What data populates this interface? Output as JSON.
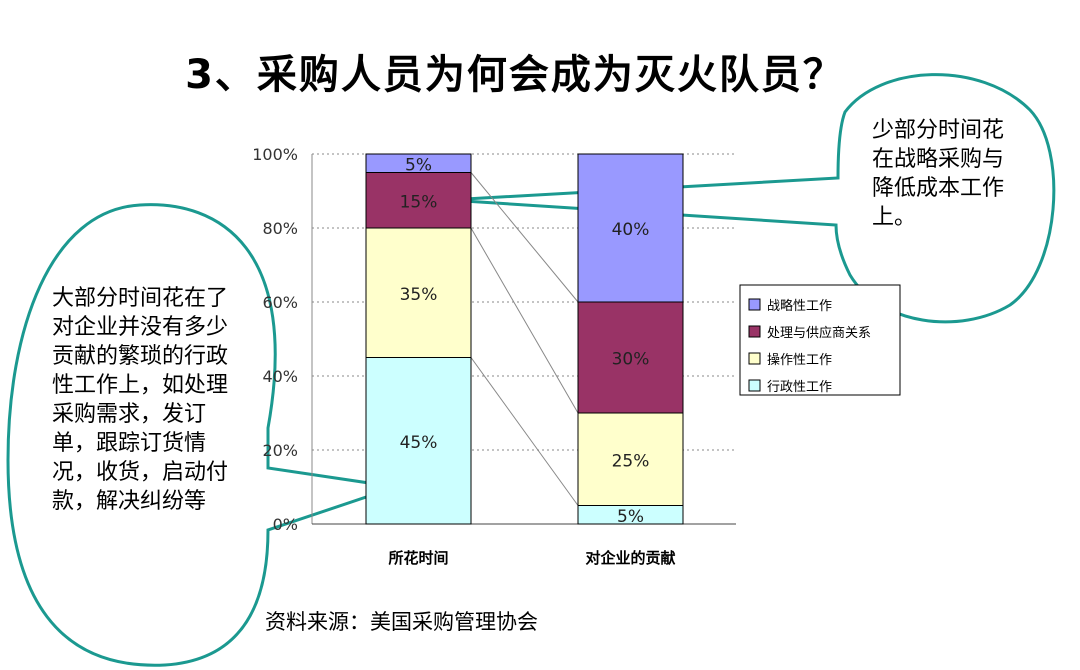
{
  "page": {
    "title": "3、采购人员为何会成为灭火队员？",
    "left_bubble": "大部分时间花在了对企业并没有多少贡献的繁琐的行政性工作上，如处理采购需求，发订单，跟踪订货情况，收货，启动付款，解决纠纷等",
    "right_bubble": "少部分时间花在战略采购与降低成本工作上。",
    "source": "资料来源：美国采购管理协会"
  },
  "colors": {
    "bubble_border": "#1b9990",
    "grid": "#888888"
  },
  "chart_data": {
    "type": "bar",
    "stacked": true,
    "categories": [
      "所花时间",
      "对企业的贡献"
    ],
    "series": [
      {
        "name": "行政性工作",
        "color": "#ccffff",
        "values": [
          45,
          5
        ],
        "labels": [
          "45%",
          "5%"
        ]
      },
      {
        "name": "操作性工作",
        "color": "#ffffcc",
        "values": [
          35,
          25
        ],
        "labels": [
          "35%",
          "25%"
        ]
      },
      {
        "name": "处理与供应商关系",
        "color": "#993366",
        "values": [
          15,
          30
        ],
        "labels": [
          "15%",
          "30%"
        ]
      },
      {
        "name": "战略性工作",
        "color": "#9999ff",
        "values": [
          5,
          40
        ],
        "labels": [
          "5%",
          "40%"
        ]
      }
    ],
    "legend_order": [
      "战略性工作",
      "处理与供应商关系",
      "操作性工作",
      "行政性工作"
    ],
    "ylim": [
      0,
      100
    ],
    "yticks": [
      "0%",
      "20%",
      "40%",
      "60%",
      "80%",
      "100%"
    ],
    "grid": true,
    "legend_position": "right"
  }
}
